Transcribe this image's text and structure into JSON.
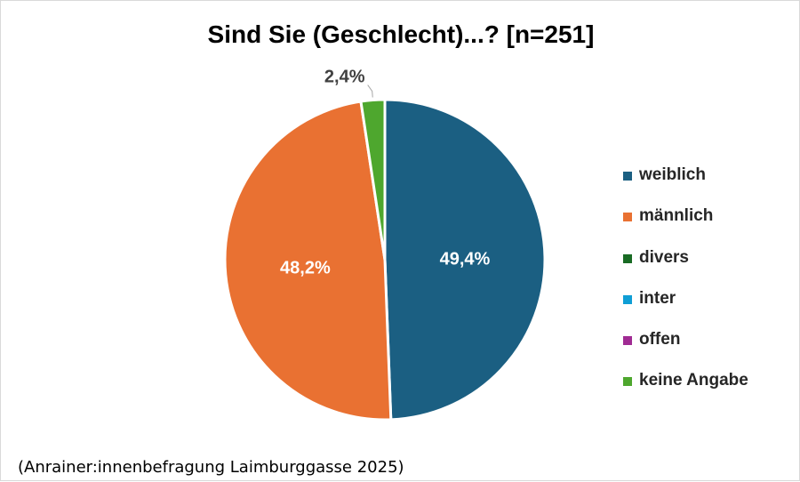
{
  "chart_data": {
    "type": "pie",
    "title": "Sind Sie (Geschlecht)...? [n=251]",
    "categories": [
      "weiblich",
      "männlich",
      "divers",
      "inter",
      "offen",
      "keine Angabe"
    ],
    "values": [
      49.4,
      48.2,
      0,
      0,
      0,
      2.4
    ],
    "labels": [
      "49,4%",
      "48,2%",
      "",
      "",
      "",
      "2,4%"
    ],
    "colors": [
      "#1b5f82",
      "#e97132",
      "#196b24",
      "#0f9ed5",
      "#a02b93",
      "#4ea72e"
    ],
    "legend_position": "right"
  },
  "footnote": "(Anrainer:innenbefragung Laimburggasse 2025)"
}
